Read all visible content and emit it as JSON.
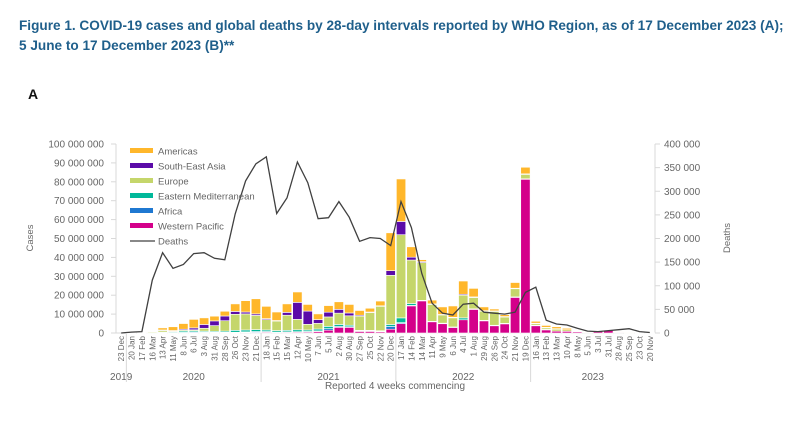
{
  "title": "Figure 1. COVID-19 cases and global deaths by 28-day intervals reported by WHO Region, as of 17 December 2023 (A); 5 June to 17 December 2023 (B)**",
  "panel_label": "A",
  "chart_data": {
    "type": "bar",
    "stacked": true,
    "xlabel": "Reported 4 weeks commencing",
    "ylabel": "Cases",
    "y2label": "Deaths",
    "ylim": [
      0,
      100000000
    ],
    "y2lim": [
      0,
      400000
    ],
    "yticks": [
      "0",
      "10 000 000",
      "20 000 000",
      "30 000 000",
      "40 000 000",
      "50 000 000",
      "60 000 000",
      "70 000 000",
      "80 000 000",
      "90 000 000",
      "100 000 000"
    ],
    "y2ticks": [
      "0",
      "50 000",
      "100 000",
      "150 000",
      "200 000",
      "250 000",
      "300 000",
      "350 000",
      "400 000"
    ],
    "years": [
      {
        "label": "2019",
        "start": 0,
        "end": 0
      },
      {
        "label": "2020",
        "start": 1,
        "end": 13
      },
      {
        "label": "2021",
        "start": 14,
        "end": 26
      },
      {
        "label": "2022",
        "start": 27,
        "end": 39
      },
      {
        "label": "2023",
        "start": 40,
        "end": 51
      }
    ],
    "categories": [
      "23 Dec",
      "20 Jan",
      "17 Feb",
      "16 Mar",
      "13 Apr",
      "11 May",
      "8 Jun",
      "6 Jul",
      "3 Aug",
      "31 Aug",
      "28 Sep",
      "26 Oct",
      "23 Nov",
      "21 Dec",
      "18 Jan",
      "15 Feb",
      "15 Mar",
      "12 Apr",
      "10 May",
      "7 Jun",
      "5 Jul",
      "2 Aug",
      "30 Aug",
      "27 Sep",
      "25 Oct",
      "22 Nov",
      "20 Dec",
      "17 Jan",
      "14 Feb",
      "14 Mar",
      "11 Apr",
      "9 May",
      "6 Jun",
      "4 Jul",
      "1 Aug",
      "29 Aug",
      "26 Sep",
      "24 Oct",
      "21 Nov",
      "19 Dec",
      "16 Jan",
      "13 Feb",
      "13 Mar",
      "10 Apr",
      "8 May",
      "5 Jun",
      "3 Jul",
      "31 Jul",
      "28 Aug",
      "25 Sep",
      "23 Oct",
      "20 Nov"
    ],
    "units_note": "case values in millions",
    "series": [
      {
        "name": "Western Pacific",
        "color": "#d4008a",
        "values": [
          0,
          0.1,
          0.1,
          0.1,
          0.1,
          0.1,
          0.1,
          0.2,
          0.2,
          0.2,
          0.2,
          0.2,
          0.3,
          0.3,
          0.4,
          0.3,
          0.4,
          0.5,
          0.6,
          0.8,
          1.5,
          3,
          3,
          1,
          1,
          0.8,
          2,
          5,
          14.5,
          17,
          6,
          5,
          3,
          7,
          12.5,
          6.5,
          4,
          5,
          19,
          81.5,
          4,
          1.8,
          1,
          0.9,
          0.8,
          0.4,
          1,
          1.5,
          0.5,
          0.2,
          0.1,
          0.1
        ]
      },
      {
        "name": "Africa",
        "color": "#1f78d1",
        "values": [
          0,
          0,
          0,
          0.05,
          0.1,
          0.1,
          0.2,
          0.4,
          0.3,
          0.2,
          0.2,
          0.2,
          0.3,
          0.5,
          0.4,
          0.2,
          0.2,
          0.2,
          0.2,
          0.3,
          0.8,
          0.5,
          0.3,
          0.1,
          0.1,
          0.1,
          1.5,
          0.5,
          0.1,
          0,
          0,
          0,
          0,
          0,
          0,
          0,
          0,
          0,
          0,
          0,
          0,
          0,
          0,
          0,
          0,
          0,
          0,
          0,
          0,
          0,
          0,
          0
        ]
      },
      {
        "name": "Eastern Mediterranean",
        "color": "#00b89a",
        "values": [
          0,
          0,
          0,
          0.1,
          0.3,
          0.4,
          0.7,
          0.6,
          0.5,
          0.5,
          0.6,
          1,
          1,
          1,
          0.8,
          0.8,
          0.8,
          1,
          0.8,
          1,
          1.2,
          1,
          0.8,
          0.3,
          0.3,
          0.3,
          1,
          2.5,
          1,
          0.3,
          0.2,
          0.2,
          0.2,
          1,
          0.3,
          0.2,
          0.1,
          0.1,
          0.1,
          0.1,
          0.1,
          0.1,
          0,
          0,
          0,
          0,
          0,
          0,
          0,
          0,
          0,
          0
        ]
      },
      {
        "name": "Europe",
        "color": "#c5d66b",
        "values": [
          0,
          0,
          0,
          0.6,
          1,
          0.5,
          0.5,
          0.5,
          1.5,
          3,
          5.5,
          8.5,
          8.5,
          7.5,
          5.5,
          5,
          8,
          5.5,
          3,
          3,
          5,
          6,
          5,
          7.5,
          9.5,
          13,
          26,
          44,
          23,
          20,
          9,
          4.5,
          5,
          12,
          6,
          5,
          7.5,
          3.5,
          4.5,
          2.5,
          1,
          1,
          1.2,
          0.8,
          0.1,
          0.05,
          0,
          0,
          0.05,
          0.05,
          0.05,
          0.05
        ]
      },
      {
        "name": "South-East Asia",
        "color": "#5b0ba8",
        "values": [
          0,
          0,
          0,
          0,
          0.1,
          0.2,
          0.5,
          1,
          2,
          2.5,
          2.5,
          1.5,
          1,
          0.8,
          0.5,
          0.3,
          1.5,
          9,
          7,
          2,
          2.5,
          2,
          1.5,
          0.5,
          0.2,
          0.2,
          2.5,
          7,
          1.5,
          0.5,
          0.2,
          0.1,
          0.1,
          0.5,
          0.3,
          0.1,
          0.1,
          0.1,
          0.1,
          0.1,
          0.1,
          0.1,
          0.1,
          0,
          0,
          0,
          0,
          0,
          0,
          0,
          0,
          0
        ]
      },
      {
        "name": "Americas",
        "color": "#ffb72b",
        "values": [
          0,
          0,
          0,
          0.1,
          1.1,
          2,
          3,
          4.5,
          3.5,
          2.5,
          2.5,
          4,
          6,
          8,
          6.5,
          4.5,
          4.5,
          5.5,
          3.5,
          3,
          3.5,
          4,
          4.5,
          2.5,
          2,
          2.5,
          20,
          22.5,
          5.5,
          1,
          2,
          4,
          6,
          7,
          4.5,
          2,
          1,
          1,
          3,
          3.5,
          1,
          1,
          1,
          0.8,
          0.1,
          0.05,
          0,
          0,
          0.05,
          0.05,
          0.05,
          0
        ]
      }
    ],
    "deaths": {
      "name": "Deaths",
      "color": "#404040",
      "values": [
        0,
        2000,
        3000,
        112000,
        170000,
        137000,
        145000,
        168000,
        170000,
        158000,
        155000,
        252000,
        322000,
        358000,
        373000,
        253000,
        286000,
        362000,
        318000,
        242000,
        244000,
        278000,
        245000,
        194000,
        202000,
        200000,
        185000,
        278000,
        223000,
        126000,
        63000,
        42000,
        38000,
        61000,
        63000,
        44000,
        42000,
        40000,
        44000,
        86000,
        97000,
        27000,
        19000,
        17000,
        10000,
        4000,
        3000,
        5000,
        7000,
        9000,
        3000,
        1000
      ]
    },
    "legend_order": [
      "Americas",
      "South-East Asia",
      "Europe",
      "Eastern Mediterranean",
      "Africa",
      "Western Pacific",
      "Deaths"
    ],
    "legend_placement": "top-left"
  }
}
